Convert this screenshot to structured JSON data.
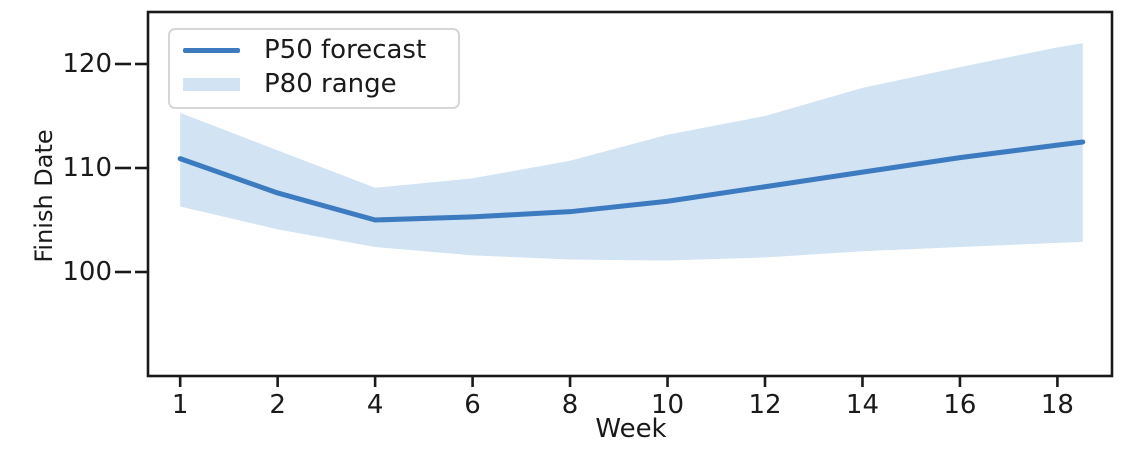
{
  "figure": {
    "background": "#ffffff",
    "colors": {
      "p50_line": "#3d7bc1",
      "p80_band": "#d2e3f3",
      "spine": "#1a1a1a",
      "text": "#1a1a1a",
      "legend_border": "#d6d6d6"
    }
  },
  "chart_data": {
    "type": "line",
    "title": "",
    "xlabel": "Week",
    "ylabel": "Finish Date",
    "legend_position": "upper left",
    "grid": false,
    "x_tick_labels": [
      "1",
      "2",
      "4",
      "6",
      "8",
      "10",
      "12",
      "14",
      "16",
      "18"
    ],
    "x_scale": "evenly-spaced-ticks",
    "y_ticks": [
      100,
      110,
      120
    ],
    "ylim": [
      90,
      125
    ],
    "xlim_index": [
      -0.33,
      9.56
    ],
    "x_index": [
      0,
      1,
      2,
      3,
      4,
      5,
      6,
      7,
      8,
      9,
      9.26
    ],
    "series": [
      {
        "name": "P50 forecast",
        "kind": "line",
        "values": [
          110.9,
          107.6,
          105.0,
          105.3,
          105.8,
          106.8,
          108.2,
          109.6,
          111.0,
          112.2,
          112.5
        ]
      },
      {
        "name": "P80 range",
        "kind": "band",
        "upper": [
          115.3,
          111.7,
          108.1,
          109.0,
          110.7,
          113.2,
          115.0,
          117.7,
          119.7,
          121.6,
          122.0
        ],
        "lower": [
          106.3,
          104.1,
          102.4,
          101.6,
          101.2,
          101.1,
          101.4,
          102.0,
          102.4,
          102.8,
          102.9
        ]
      }
    ]
  }
}
